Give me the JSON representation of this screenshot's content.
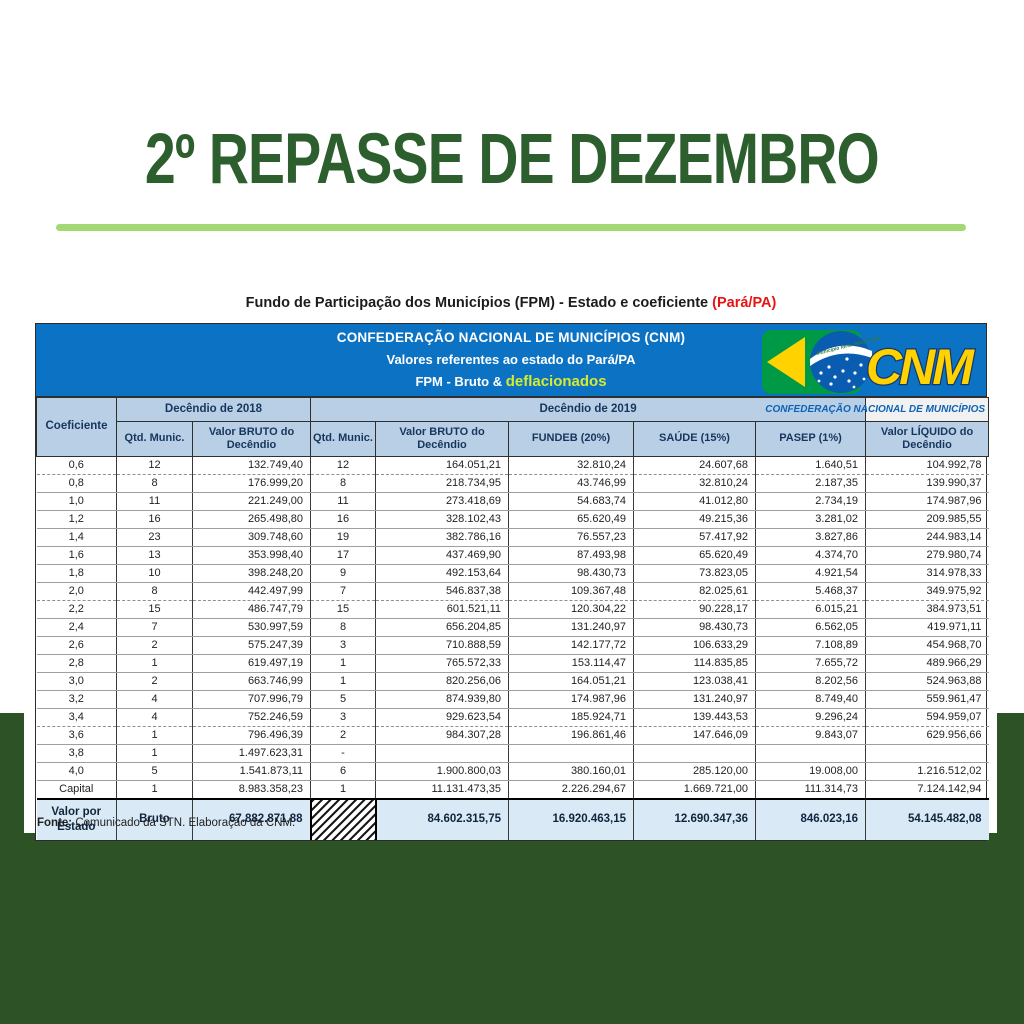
{
  "title": "2º REPASSE DE DEZEMBRO",
  "caption": {
    "text": "Fundo de Participação dos Municípios  (FPM) - Estado e coeficiente ",
    "highlight": "(Pará/PA)"
  },
  "banner": {
    "line1": "CONFEDERAÇÃO NACIONAL DE MUNICÍPIOS (CNM)",
    "line2": "Valores referentes ao estado do Pará/PA",
    "line3_prefix": "FPM - Bruto & ",
    "line3_highlight": "deflacionados"
  },
  "logo": {
    "acronym": "CNM",
    "caption": "CONFEDERAÇÃO NACIONAL DE MUNICÍPIOS",
    "banner_text": "Município forte. Brasil forte"
  },
  "table": {
    "corner_header": "Coeficiente",
    "group_2018": "Decêndio de 2018",
    "group_2019": "Decêndio de 2019",
    "columns": [
      "Qtd. Munic.",
      "Valor BRUTO do Decêndio",
      "Qtd. Munic.",
      "Valor BRUTO do Decêndio",
      "FUNDEB (20%)",
      "SAÚDE (15%)",
      "PASEP (1%)",
      "Valor LÍQUIDO do Decêndio"
    ],
    "rows": [
      [
        "0,6",
        "12",
        "132.749,40",
        "12",
        "164.051,21",
        "32.810,24",
        "24.607,68",
        "1.640,51",
        "104.992,78"
      ],
      [
        "0,8",
        "8",
        "176.999,20",
        "8",
        "218.734,95",
        "43.746,99",
        "32.810,24",
        "2.187,35",
        "139.990,37"
      ],
      [
        "1,0",
        "11",
        "221.249,00",
        "11",
        "273.418,69",
        "54.683,74",
        "41.012,80",
        "2.734,19",
        "174.987,96"
      ],
      [
        "1,2",
        "16",
        "265.498,80",
        "16",
        "328.102,43",
        "65.620,49",
        "49.215,36",
        "3.281,02",
        "209.985,55"
      ],
      [
        "1,4",
        "23",
        "309.748,60",
        "19",
        "382.786,16",
        "76.557,23",
        "57.417,92",
        "3.827,86",
        "244.983,14"
      ],
      [
        "1,6",
        "13",
        "353.998,40",
        "17",
        "437.469,90",
        "87.493,98",
        "65.620,49",
        "4.374,70",
        "279.980,74"
      ],
      [
        "1,8",
        "10",
        "398.248,20",
        "9",
        "492.153,64",
        "98.430,73",
        "73.823,05",
        "4.921,54",
        "314.978,33"
      ],
      [
        "2,0",
        "8",
        "442.497,99",
        "7",
        "546.837,38",
        "109.367,48",
        "82.025,61",
        "5.468,37",
        "349.975,92"
      ],
      [
        "2,2",
        "15",
        "486.747,79",
        "15",
        "601.521,11",
        "120.304,22",
        "90.228,17",
        "6.015,21",
        "384.973,51"
      ],
      [
        "2,4",
        "7",
        "530.997,59",
        "8",
        "656.204,85",
        "131.240,97",
        "98.430,73",
        "6.562,05",
        "419.971,11"
      ],
      [
        "2,6",
        "2",
        "575.247,39",
        "3",
        "710.888,59",
        "142.177,72",
        "106.633,29",
        "7.108,89",
        "454.968,70"
      ],
      [
        "2,8",
        "1",
        "619.497,19",
        "1",
        "765.572,33",
        "153.114,47",
        "114.835,85",
        "7.655,72",
        "489.966,29"
      ],
      [
        "3,0",
        "2",
        "663.746,99",
        "1",
        "820.256,06",
        "164.051,21",
        "123.038,41",
        "8.202,56",
        "524.963,88"
      ],
      [
        "3,2",
        "4",
        "707.996,79",
        "5",
        "874.939,80",
        "174.987,96",
        "131.240,97",
        "8.749,40",
        "559.961,47"
      ],
      [
        "3,4",
        "4",
        "752.246,59",
        "3",
        "929.623,54",
        "185.924,71",
        "139.443,53",
        "9.296,24",
        "594.959,07"
      ],
      [
        "3,6",
        "1",
        "796.496,39",
        "2",
        "984.307,28",
        "196.861,46",
        "147.646,09",
        "9.843,07",
        "629.956,66"
      ],
      [
        "3,8",
        "1",
        "1.497.623,31",
        "-",
        "",
        "",
        "",
        "",
        ""
      ],
      [
        "4,0",
        "5",
        "1.541.873,11",
        "6",
        "1.900.800,03",
        "380.160,01",
        "285.120,00",
        "19.008,00",
        "1.216.512,02"
      ],
      [
        "Capital",
        "1",
        "8.983.358,23",
        "1",
        "11.131.473,35",
        "2.226.294,67",
        "1.669.721,00",
        "111.314,73",
        "7.124.142,94"
      ]
    ],
    "total": {
      "label": "Valor por Estado",
      "mode": "Bruto",
      "bruto_2018": "67.882.871,88",
      "bruto_2019": "84.602.315,75",
      "fundeb": "16.920.463,15",
      "saude": "12.690.347,36",
      "pasep": "846.023,16",
      "liquido": "54.145.482,08"
    },
    "source_label": "Fonte:",
    "source_text": " Comunicado da STN. Elaboração da CNM."
  },
  "colors": {
    "title_green": "#2d5e2e",
    "rule_green": "#a3d874",
    "footer_green": "#2d5226",
    "banner_blue": "#0c73c4",
    "header_cell_blue": "#b9cfe6",
    "total_row_blue": "#d9eaf6",
    "highlight_red": "#e81414",
    "deflacionados_yellow": "#d6ea2e",
    "logo_yellow": "#ffd200",
    "logo_green": "#009a47",
    "logo_circle_blue": "#0a5cb0",
    "logo_caption_blue": "#0d62b5"
  }
}
